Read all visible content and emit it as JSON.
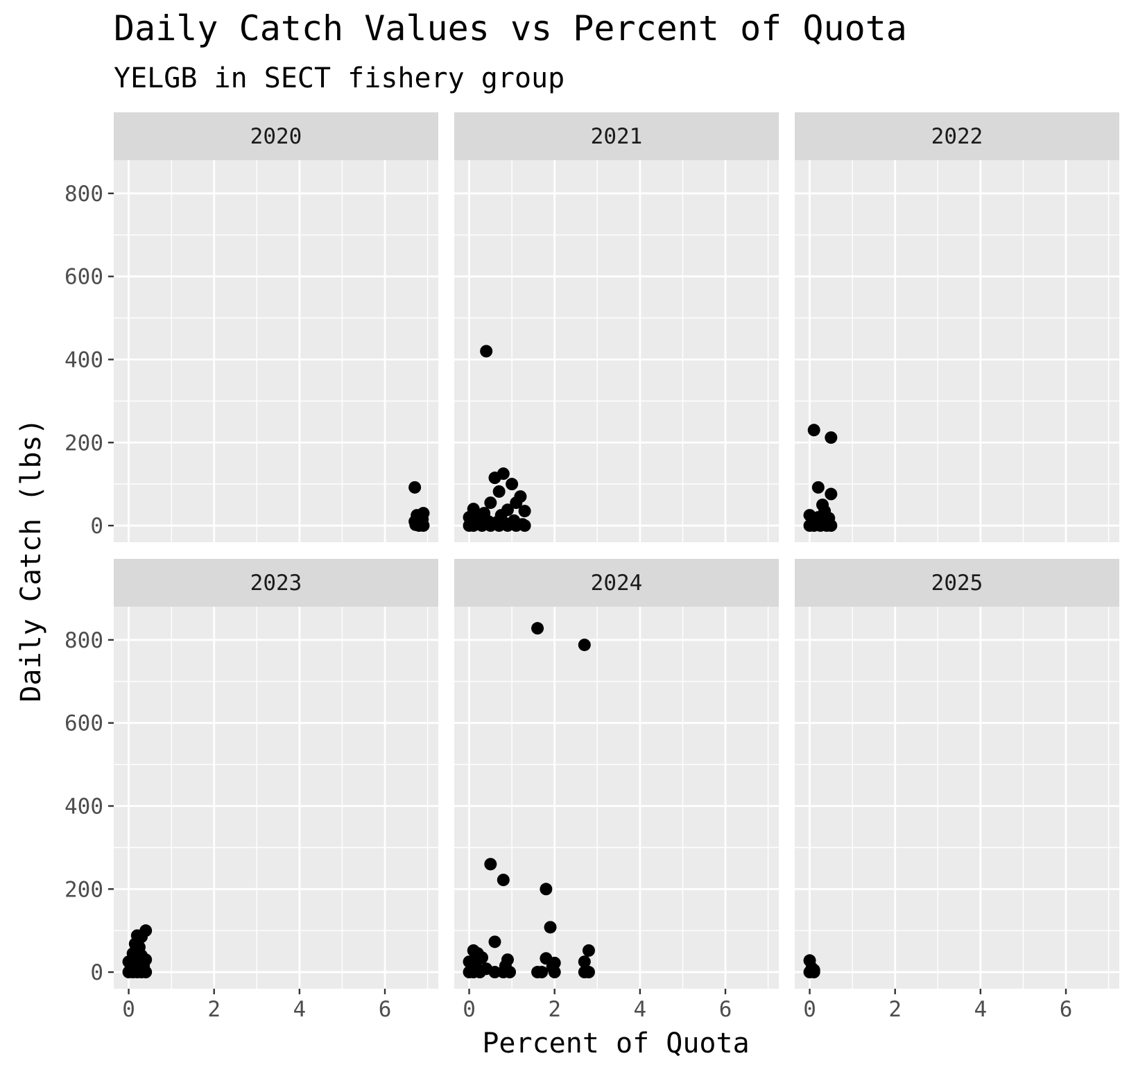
{
  "chart_data": {
    "type": "scatter",
    "title": "Daily Catch Values vs Percent of Quota",
    "subtitle": "YELGB in SECT fishery group",
    "xlabel": "Percent of Quota",
    "ylabel": "Daily Catch (lbs)",
    "xlim": [
      -0.35,
      7.25
    ],
    "ylim": [
      -40,
      880
    ],
    "x_ticks": [
      0,
      2,
      4,
      6
    ],
    "y_ticks": [
      0,
      200,
      400,
      600,
      800
    ],
    "grid": true,
    "point_color": "#000000",
    "panel_background": "#ebebeb",
    "strip_background": "#d9d9d9",
    "facets": [
      {
        "label": "2020",
        "points": [
          [
            6.7,
            92
          ],
          [
            6.75,
            25
          ],
          [
            6.8,
            20
          ],
          [
            6.9,
            30
          ],
          [
            6.7,
            10
          ],
          [
            6.85,
            5
          ],
          [
            6.8,
            0
          ],
          [
            6.9,
            0
          ],
          [
            6.72,
            2
          ],
          [
            6.88,
            15
          ],
          [
            6.78,
            8
          ]
        ]
      },
      {
        "label": "2021",
        "points": [
          [
            0.4,
            420
          ],
          [
            0.8,
            125
          ],
          [
            0.6,
            115
          ],
          [
            1.0,
            100
          ],
          [
            0.7,
            82
          ],
          [
            1.2,
            70
          ],
          [
            0.5,
            55
          ],
          [
            1.1,
            55
          ],
          [
            0.1,
            40
          ],
          [
            0.9,
            38
          ],
          [
            1.3,
            35
          ],
          [
            0.35,
            30
          ],
          [
            0.75,
            25
          ],
          [
            0.0,
            20
          ],
          [
            0.2,
            15
          ],
          [
            1.05,
            12
          ],
          [
            0.45,
            10
          ],
          [
            0.65,
            8
          ],
          [
            0.0,
            0
          ],
          [
            0.1,
            0
          ],
          [
            0.3,
            0
          ],
          [
            0.5,
            0
          ],
          [
            0.7,
            0
          ],
          [
            0.9,
            0
          ],
          [
            1.1,
            0
          ],
          [
            1.3,
            0
          ],
          [
            0.85,
            5
          ],
          [
            1.25,
            3
          ]
        ]
      },
      {
        "label": "2022",
        "points": [
          [
            0.1,
            230
          ],
          [
            0.5,
            212
          ],
          [
            0.2,
            92
          ],
          [
            0.5,
            76
          ],
          [
            0.3,
            50
          ],
          [
            0.35,
            35
          ],
          [
            0.0,
            25
          ],
          [
            0.2,
            20
          ],
          [
            0.45,
            18
          ],
          [
            0.1,
            12
          ],
          [
            0.3,
            10
          ],
          [
            0.0,
            0
          ],
          [
            0.1,
            0
          ],
          [
            0.25,
            0
          ],
          [
            0.4,
            0
          ],
          [
            0.5,
            0
          ]
        ]
      },
      {
        "label": "2023",
        "points": [
          [
            0.4,
            100
          ],
          [
            0.2,
            88
          ],
          [
            0.3,
            85
          ],
          [
            0.15,
            68
          ],
          [
            0.25,
            60
          ],
          [
            0.1,
            45
          ],
          [
            0.3,
            40
          ],
          [
            0.2,
            35
          ],
          [
            0.4,
            30
          ],
          [
            0.0,
            25
          ],
          [
            0.15,
            20
          ],
          [
            0.35,
            15
          ],
          [
            0.05,
            10
          ],
          [
            0.25,
            8
          ],
          [
            0.0,
            0
          ],
          [
            0.1,
            0
          ],
          [
            0.2,
            0
          ],
          [
            0.3,
            0
          ],
          [
            0.4,
            0
          ]
        ]
      },
      {
        "label": "2024",
        "points": [
          [
            1.6,
            828
          ],
          [
            2.7,
            788
          ],
          [
            0.5,
            260
          ],
          [
            0.8,
            222
          ],
          [
            1.8,
            200
          ],
          [
            1.9,
            108
          ],
          [
            0.6,
            73
          ],
          [
            0.1,
            52
          ],
          [
            2.8,
            52
          ],
          [
            0.2,
            45
          ],
          [
            0.3,
            35
          ],
          [
            1.8,
            33
          ],
          [
            0.9,
            30
          ],
          [
            0.0,
            25
          ],
          [
            2.7,
            25
          ],
          [
            2.0,
            22
          ],
          [
            0.15,
            20
          ],
          [
            0.85,
            15
          ],
          [
            1.95,
            12
          ],
          [
            0.4,
            8
          ],
          [
            0.0,
            0
          ],
          [
            0.1,
            0
          ],
          [
            0.25,
            0
          ],
          [
            0.6,
            0
          ],
          [
            0.8,
            0
          ],
          [
            0.95,
            0
          ],
          [
            1.6,
            0
          ],
          [
            1.7,
            0
          ],
          [
            2.0,
            0
          ],
          [
            2.7,
            0
          ],
          [
            2.8,
            0
          ]
        ]
      },
      {
        "label": "2025",
        "points": [
          [
            0.0,
            28
          ],
          [
            0.05,
            10
          ],
          [
            0.1,
            5
          ],
          [
            0.0,
            0
          ],
          [
            0.1,
            0
          ],
          [
            0.05,
            2
          ]
        ]
      }
    ]
  }
}
